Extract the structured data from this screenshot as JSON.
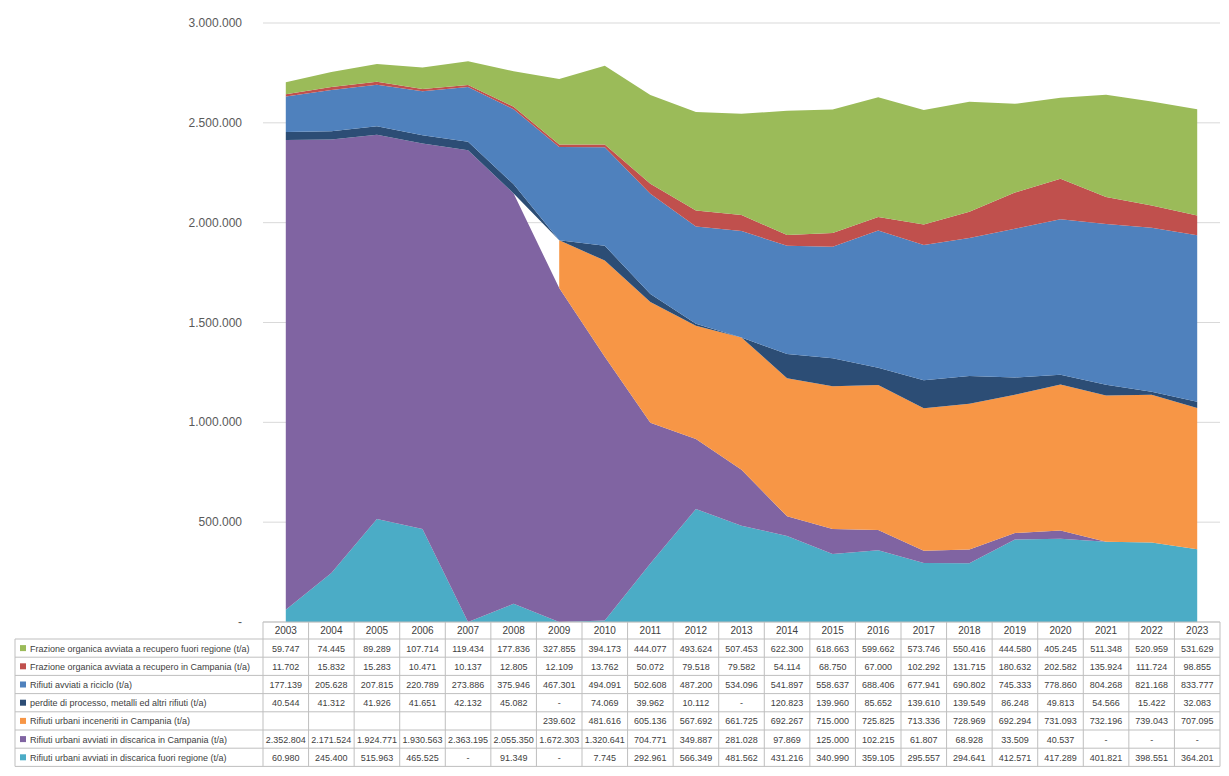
{
  "chart_data": {
    "type": "area",
    "stacked": true,
    "grid": true,
    "data_labels": true,
    "categories": [
      "2003",
      "2004",
      "2005",
      "2006",
      "2007",
      "2008",
      "2009",
      "2010",
      "2011",
      "2012",
      "2013",
      "2014",
      "2015",
      "2016",
      "2017",
      "2018",
      "2019",
      "2020",
      "2021",
      "2022",
      "2023"
    ],
    "ylim": [
      0,
      3000000
    ],
    "yticks": [
      {
        "value": 0,
        "label": "-"
      },
      {
        "value": 500000,
        "label": "500.000"
      },
      {
        "value": 1000000,
        "label": "1.000.000"
      },
      {
        "value": 1500000,
        "label": "1.500.000"
      },
      {
        "value": 2000000,
        "label": "2.000.000"
      },
      {
        "value": 2500000,
        "label": "2.500.000"
      },
      {
        "value": 3000000,
        "label": "3.000.000"
      }
    ],
    "series": [
      {
        "name": "Rifiuti urbani avviati in discarica fuori regione (t/a)",
        "color": "#4bacc6",
        "values": [
          60980,
          245400,
          515963,
          465525,
          0,
          91349,
          0,
          7745,
          292961,
          566349,
          481562,
          431216,
          340990,
          359105,
          295557,
          294641,
          412571,
          417289,
          401821,
          398551,
          364201
        ],
        "value_labels": [
          "60.980",
          "245.400",
          "515.963",
          "465.525",
          "-",
          "91.349",
          "-",
          "7.745",
          "292.961",
          "566.349",
          "481.562",
          "431.216",
          "340.990",
          "359.105",
          "295.557",
          "294.641",
          "412.571",
          "417.289",
          "401.821",
          "398.551",
          "364.201"
        ]
      },
      {
        "name": "Rifiuti urbani avviati in discarica in Campania (t/a)",
        "color": "#8064a2",
        "values": [
          2352804,
          2171524,
          1924771,
          1930563,
          2363195,
          2055350,
          1672303,
          1320641,
          704771,
          349887,
          281028,
          97869,
          125000,
          102215,
          61807,
          68928,
          33509,
          40537,
          0,
          0,
          0
        ],
        "value_labels": [
          "2.352.804",
          "2.171.524",
          "1.924.771",
          "1.930.563",
          "2.363.195",
          "2.055.350",
          "1.672.303",
          "1.320.641",
          "704.771",
          "349.887",
          "281.028",
          "97.869",
          "125.000",
          "102.215",
          "61.807",
          "68.928",
          "33.509",
          "40.537",
          "-",
          "-",
          "-"
        ]
      },
      {
        "name": "Rifiuti urbani inceneriti in Campania (t/a)",
        "color": "#f79646",
        "values": [
          null,
          null,
          null,
          null,
          null,
          null,
          239602,
          481616,
          605136,
          567692,
          661725,
          692267,
          715000,
          725825,
          713336,
          728969,
          692294,
          731093,
          732196,
          739043,
          707095
        ],
        "value_labels": [
          null,
          null,
          null,
          null,
          null,
          null,
          "239.602",
          "481.616",
          "605.136",
          "567.692",
          "661.725",
          "692.267",
          "715.000",
          "725.825",
          "713.336",
          "728.969",
          "692.294",
          "731.093",
          "732.196",
          "739.043",
          "707.095"
        ]
      },
      {
        "name": "perdite di processo, metalli ed altri rifiuti (t/a)",
        "color": "#2c4d75",
        "values": [
          40544,
          41312,
          41926,
          41651,
          42132,
          45082,
          0,
          74069,
          39962,
          10112,
          0,
          120823,
          139960,
          85652,
          139610,
          139549,
          86248,
          49813,
          54566,
          15422,
          32083
        ],
        "value_labels": [
          "40.544",
          "41.312",
          "41.926",
          "41.651",
          "42.132",
          "45.082",
          "-",
          "74.069",
          "39.962",
          "10.112",
          "-",
          "120.823",
          "139.960",
          "85.652",
          "139.610",
          "139.549",
          "86.248",
          "49.813",
          "54.566",
          "15.422",
          "32.083"
        ]
      },
      {
        "name": "Rifiuti avviati a riciclo (t/a)",
        "color": "#4f81bd",
        "values": [
          177139,
          205628,
          207815,
          220789,
          273886,
          375946,
          467301,
          494091,
          502608,
          487200,
          534096,
          541897,
          558637,
          688406,
          677941,
          690802,
          745333,
          778860,
          804268,
          821168,
          833777
        ],
        "value_labels": [
          "177.139",
          "205.628",
          "207.815",
          "220.789",
          "273.886",
          "375.946",
          "467.301",
          "494.091",
          "502.608",
          "487.200",
          "534.096",
          "541.897",
          "558.637",
          "688.406",
          "677.941",
          "690.802",
          "745.333",
          "778.860",
          "804.268",
          "821.168",
          "833.777"
        ]
      },
      {
        "name": "Frazione organica avviata a recupero in Campania (t/a)",
        "color": "#c0504d",
        "values": [
          11702,
          15832,
          15283,
          10471,
          10137,
          12805,
          12109,
          13762,
          50072,
          79518,
          79582,
          54114,
          68750,
          67000,
          102292,
          131715,
          180632,
          202582,
          135924,
          111724,
          98855
        ],
        "value_labels": [
          "11.702",
          "15.832",
          "15.283",
          "10.471",
          "10.137",
          "12.805",
          "12.109",
          "13.762",
          "50.072",
          "79.518",
          "79.582",
          "54.114",
          "68.750",
          "67.000",
          "102.292",
          "131.715",
          "180.632",
          "202.582",
          "135.924",
          "111.724",
          "98.855"
        ]
      },
      {
        "name": "Frazione organica avviata a recupero fuori regione (t/a)",
        "color": "#9bbb59",
        "values": [
          59747,
          74445,
          89289,
          107714,
          119434,
          177836,
          327855,
          394173,
          444077,
          493624,
          507453,
          622300,
          618663,
          599662,
          573746,
          550416,
          444580,
          405245,
          511348,
          520959,
          531629
        ],
        "value_labels": [
          "59.747",
          "74.445",
          "89.289",
          "107.714",
          "119.434",
          "177.836",
          "327.855",
          "394.173",
          "444.077",
          "493.624",
          "507.453",
          "622.300",
          "618.663",
          "599.662",
          "573.746",
          "550.416",
          "444.580",
          "405.245",
          "511.348",
          "520.959",
          "531.629"
        ]
      }
    ]
  }
}
